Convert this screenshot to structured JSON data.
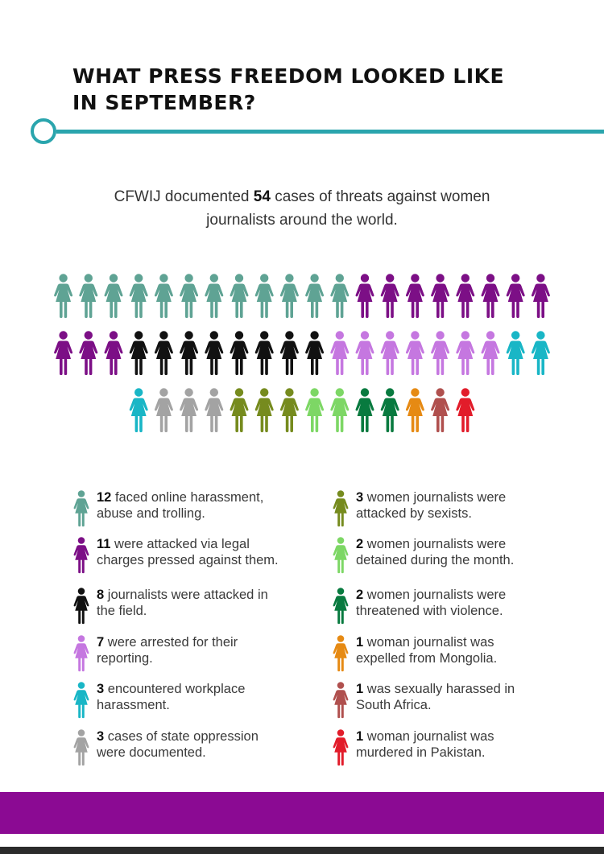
{
  "title": "WHAT PRESS FREEDOM LOOKED LIKE IN SEPTEMBER?",
  "intro": {
    "before": "CFWIJ documented",
    "count": "54",
    "after_line1": "cases of threats against women",
    "line2": "journalists around the world."
  },
  "colors": {
    "accent": "#2aa5ad",
    "footer": "#8b0a93"
  },
  "chart_data": {
    "type": "pictogram",
    "unit": "woman-figure-icon",
    "total": 54,
    "categories": [
      {
        "count": 12,
        "color": "#5fa394",
        "line1": "faced online harassment,",
        "line2": "abuse and trolling."
      },
      {
        "count": 11,
        "color": "#7c0f86",
        "line1": "were attacked via legal",
        "line2": "charges pressed against them."
      },
      {
        "count": 8,
        "color": "#111111",
        "line1": "journalists were attacked in",
        "line2": "the field."
      },
      {
        "count": 7,
        "color": "#c577e0",
        "line1": "were arrested for their",
        "line2": "reporting."
      },
      {
        "count": 3,
        "color": "#19b6c6",
        "line1": "encountered workplace",
        "line2": "harassment."
      },
      {
        "count": 3,
        "color": "#a3a3a3",
        "line1": "cases of state oppression",
        "line2": "were documented."
      },
      {
        "count": 3,
        "color": "#768b1e",
        "line1": "women journalists were",
        "line2": "attacked by sexists."
      },
      {
        "count": 2,
        "color": "#7dd765",
        "line1": "women journalists were",
        "line2": "detained during the month."
      },
      {
        "count": 2,
        "color": "#087a3f",
        "line1": "women journalists were",
        "line2": "threatened with violence."
      },
      {
        "count": 1,
        "color": "#e68a13",
        "line1": "woman journalist was",
        "line2": "expelled from Mongolia."
      },
      {
        "count": 1,
        "color": "#b0504e",
        "line1": "was sexually harassed in",
        "line2": "South Africa."
      },
      {
        "count": 1,
        "color": "#e21c2a",
        "line1": "woman journalist was",
        "line2": "murdered in Pakistan."
      }
    ]
  }
}
